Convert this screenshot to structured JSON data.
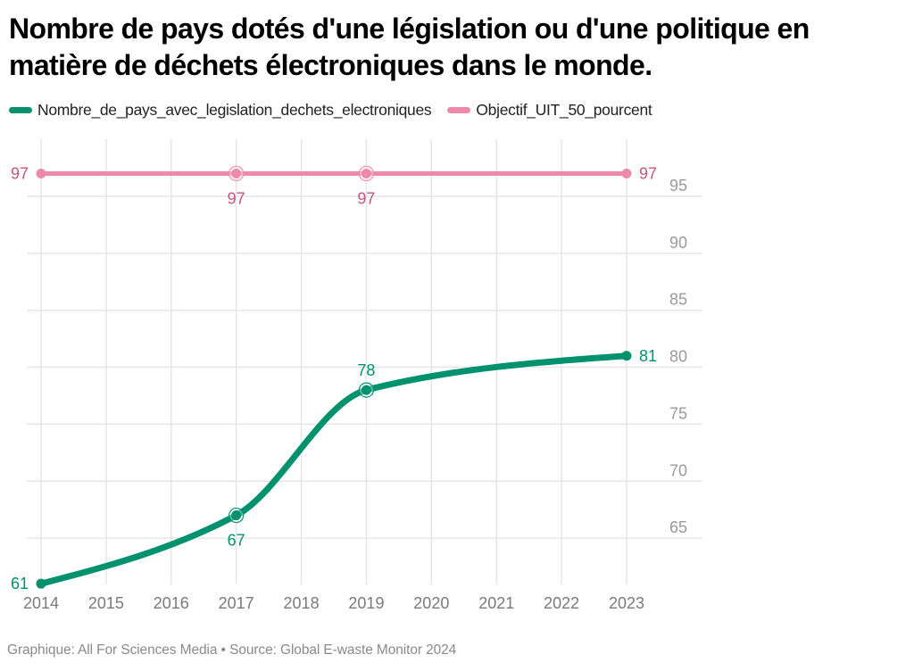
{
  "title": "Nombre de pays dotés d'une législation ou d'une politique en matière de déchets électroniques dans le monde.",
  "legend": [
    {
      "label": "Nombre_de_pays_avec_legislation_dechets_electroniques",
      "color": "#00916e"
    },
    {
      "label": "Objectif_UIT_50_pourcent",
      "color": "#ee89ab"
    }
  ],
  "footer": "Graphique: All For Sciences Media • Source: Global E-waste Monitor 2024",
  "chart_data": {
    "type": "line",
    "title": "Nombre de pays dotés d'une législation ou d'une politique en matière de déchets électroniques dans le monde.",
    "xlabel": "",
    "ylabel": "",
    "x_ticks": [
      "2014",
      "2015",
      "2016",
      "2017",
      "2018",
      "2019",
      "2020",
      "2021",
      "2022",
      "2023"
    ],
    "y_ticks": [
      65,
      70,
      75,
      80,
      85,
      90,
      95
    ],
    "xlim": [
      2014,
      2023
    ],
    "ylim": [
      61,
      97
    ],
    "y_axis_side": "right",
    "grid": true,
    "legend_position": "top-left",
    "curve": "smooth",
    "series": [
      {
        "name": "Nombre_de_pays_avec_legislation_dechets_electroniques",
        "color": "#00916e",
        "label_color": "#00916e",
        "points": [
          {
            "x": 2014,
            "y": 61,
            "label": "61",
            "label_pos": "left",
            "marker": "dot"
          },
          {
            "x": 2017,
            "y": 67,
            "label": "67",
            "label_pos": "below",
            "marker": "ring"
          },
          {
            "x": 2019,
            "y": 78,
            "label": "78",
            "label_pos": "above",
            "marker": "ring"
          },
          {
            "x": 2023,
            "y": 81,
            "label": "81",
            "label_pos": "right",
            "marker": "dot"
          }
        ]
      },
      {
        "name": "Objectif_UIT_50_pourcent",
        "color": "#ee89ab",
        "label_color": "#c4567e",
        "points": [
          {
            "x": 2014,
            "y": 97,
            "label": "97",
            "label_pos": "left",
            "marker": "dot"
          },
          {
            "x": 2017,
            "y": 97,
            "label": "97",
            "label_pos": "below",
            "marker": "ring"
          },
          {
            "x": 2019,
            "y": 97,
            "label": "97",
            "label_pos": "below",
            "marker": "ring"
          },
          {
            "x": 2023,
            "y": 97,
            "label": "97",
            "label_pos": "right",
            "marker": "dot"
          }
        ]
      }
    ]
  }
}
